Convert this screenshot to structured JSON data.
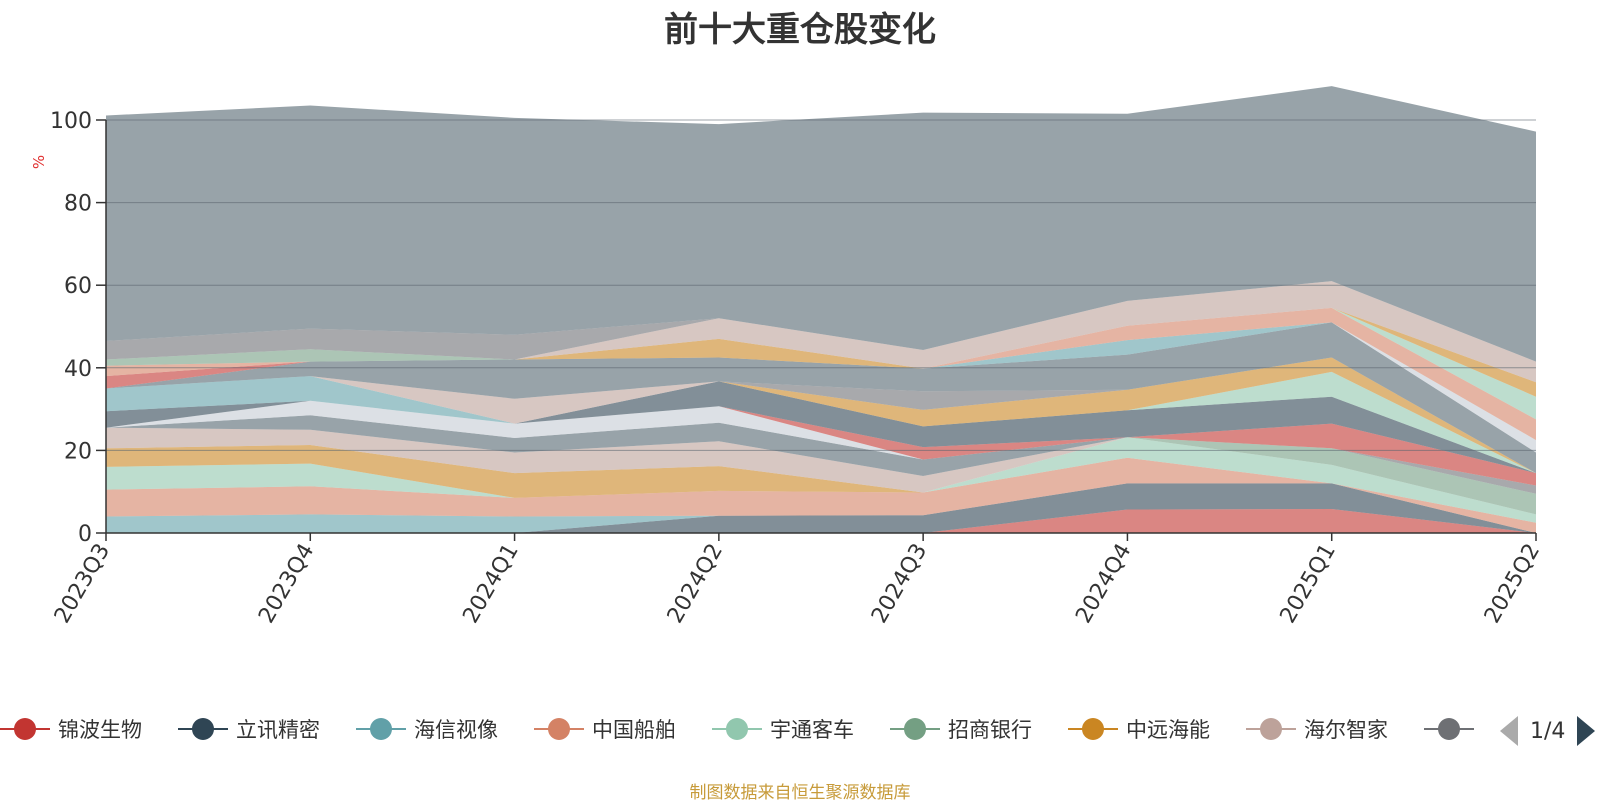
{
  "title": "前十大重仓股变化",
  "source": "制图数据来自恒生聚源数据库",
  "pager": {
    "page": "1/4"
  },
  "chart_data": {
    "type": "area",
    "stacked": true,
    "title": "前十大重仓股变化",
    "ylabel": "%",
    "ylim": [
      0,
      100
    ],
    "yticks": [
      0,
      20,
      40,
      60,
      80,
      100
    ],
    "grid": true,
    "categories": [
      "2023Q3",
      "2023Q4",
      "2024Q1",
      "2024Q2",
      "2024Q3",
      "2024Q4",
      "2025Q1",
      "2025Q2"
    ],
    "series": [
      {
        "name": "锦波生物",
        "color": "#c23531",
        "values": [
          0,
          0,
          0,
          0,
          0,
          5.7,
          5.8,
          0
        ]
      },
      {
        "name": "立讯精密",
        "color": "#2f4554",
        "values": [
          0,
          0,
          0,
          4.2,
          4.3,
          6.3,
          6.2,
          0
        ]
      },
      {
        "name": "海信视像",
        "color": "#61a0a8",
        "values": [
          4.0,
          4.5,
          4.0,
          0,
          0,
          0,
          0,
          0
        ]
      },
      {
        "name": "中国船舶",
        "color": "#d48265",
        "values": [
          6.5,
          6.8,
          4.5,
          6.0,
          5.5,
          6.2,
          0,
          2.5
        ]
      },
      {
        "name": "宇通客车",
        "color": "#91c7ae",
        "values": [
          5.5,
          5.5,
          0,
          0,
          0,
          5.0,
          4.5,
          2.0
        ]
      },
      {
        "name": "招商银行",
        "color": "#749f83",
        "values": [
          0,
          0,
          0,
          0,
          0,
          0,
          4.0,
          5.0
        ]
      },
      {
        "name": "中远海能",
        "color": "#ca8622",
        "values": [
          4.5,
          4.5,
          6.0,
          6.0,
          0,
          0,
          0,
          0
        ]
      },
      {
        "name": "海尔智家",
        "color": "#bda29a",
        "values": [
          5.0,
          3.7,
          5.0,
          6.0,
          4.0,
          0,
          0,
          0
        ]
      },
      {
        "name": "",
        "color": "#6e7074",
        "values": [
          0,
          0,
          0,
          0,
          0,
          0,
          0,
          2.0
        ]
      },
      {
        "name": "",
        "color": "#546570",
        "values": [
          0,
          3.5,
          3.5,
          4.5,
          4.0,
          0,
          0,
          0
        ]
      },
      {
        "name": "",
        "color": "#c4ccd3",
        "values": [
          0,
          3.5,
          3.5,
          4.0,
          0,
          0,
          0,
          0
        ]
      },
      {
        "name": "",
        "color": "#c23531",
        "values": [
          0,
          0,
          0,
          0,
          3.0,
          0,
          6.0,
          3.0
        ]
      },
      {
        "name": "",
        "color": "#2f4554",
        "values": [
          4.0,
          0,
          0,
          6.0,
          5.0,
          6.5,
          6.5,
          0
        ]
      },
      {
        "name": "",
        "color": "#61a0a8",
        "values": [
          5.5,
          6.0,
          0,
          0,
          0,
          0,
          0,
          0
        ]
      },
      {
        "name": "",
        "color": "#d48265",
        "values": [
          0,
          0,
          0,
          0,
          0,
          0,
          0,
          0
        ]
      },
      {
        "name": "",
        "color": "#91c7ae",
        "values": [
          0,
          0,
          0,
          0,
          0,
          0,
          6.0,
          0
        ]
      },
      {
        "name": "",
        "color": "#749f83",
        "values": [
          0,
          0,
          0,
          0,
          0,
          0,
          0,
          0
        ]
      },
      {
        "name": "",
        "color": "#ca8622",
        "values": [
          0,
          0,
          0,
          0,
          4.0,
          5.0,
          3.5,
          0
        ]
      },
      {
        "name": "",
        "color": "#bda29a",
        "values": [
          0,
          0,
          6.0,
          0,
          0,
          0,
          0,
          0
        ]
      },
      {
        "name": "",
        "color": "#6e7074",
        "values": [
          0,
          0,
          0,
          0,
          4.5,
          0,
          0,
          0
        ]
      },
      {
        "name": "",
        "color": "#546570",
        "values": [
          0,
          3.5,
          9.5,
          5.8,
          5.5,
          8.5,
          8.5,
          5.0
        ]
      },
      {
        "name": "",
        "color": "#c4ccd3",
        "values": [
          0,
          0,
          0,
          0,
          0,
          0,
          0,
          3.0
        ]
      },
      {
        "name": "",
        "color": "#c23531",
        "values": [
          3.0,
          0,
          0,
          0,
          0,
          0,
          0,
          0
        ]
      },
      {
        "name": "",
        "color": "#2f4554",
        "values": [
          0,
          0,
          0,
          0,
          0,
          0,
          0,
          0
        ]
      },
      {
        "name": "",
        "color": "#61a0a8",
        "values": [
          0,
          0,
          0,
          0,
          0,
          3.5,
          0,
          0
        ]
      },
      {
        "name": "",
        "color": "#d48265",
        "values": [
          2.5,
          0,
          0,
          0,
          0,
          3.5,
          3.5,
          5.0
        ]
      },
      {
        "name": "",
        "color": "#91c7ae",
        "values": [
          0,
          0,
          0,
          0,
          0,
          0,
          0,
          5.5
        ]
      },
      {
        "name": "",
        "color": "#749f83",
        "values": [
          1.5,
          3.0,
          0,
          0,
          0,
          0,
          0,
          0
        ]
      },
      {
        "name": "",
        "color": "#ca8622",
        "values": [
          0,
          0,
          0,
          4.5,
          0,
          0,
          0,
          3.5
        ]
      },
      {
        "name": "",
        "color": "#bda29a",
        "values": [
          0,
          0,
          0,
          5.0,
          4.5,
          6.0,
          6.5,
          5.0
        ]
      },
      {
        "name": "",
        "color": "#6e7074",
        "values": [
          4.5,
          5.0,
          6.0,
          0,
          0,
          0,
          0,
          0
        ]
      },
      {
        "name": "",
        "color": "#546570",
        "values": [
          54.6,
          54.0,
          52.5,
          47.0,
          57.5,
          45.3,
          47.2,
          55.7
        ]
      }
    ]
  }
}
